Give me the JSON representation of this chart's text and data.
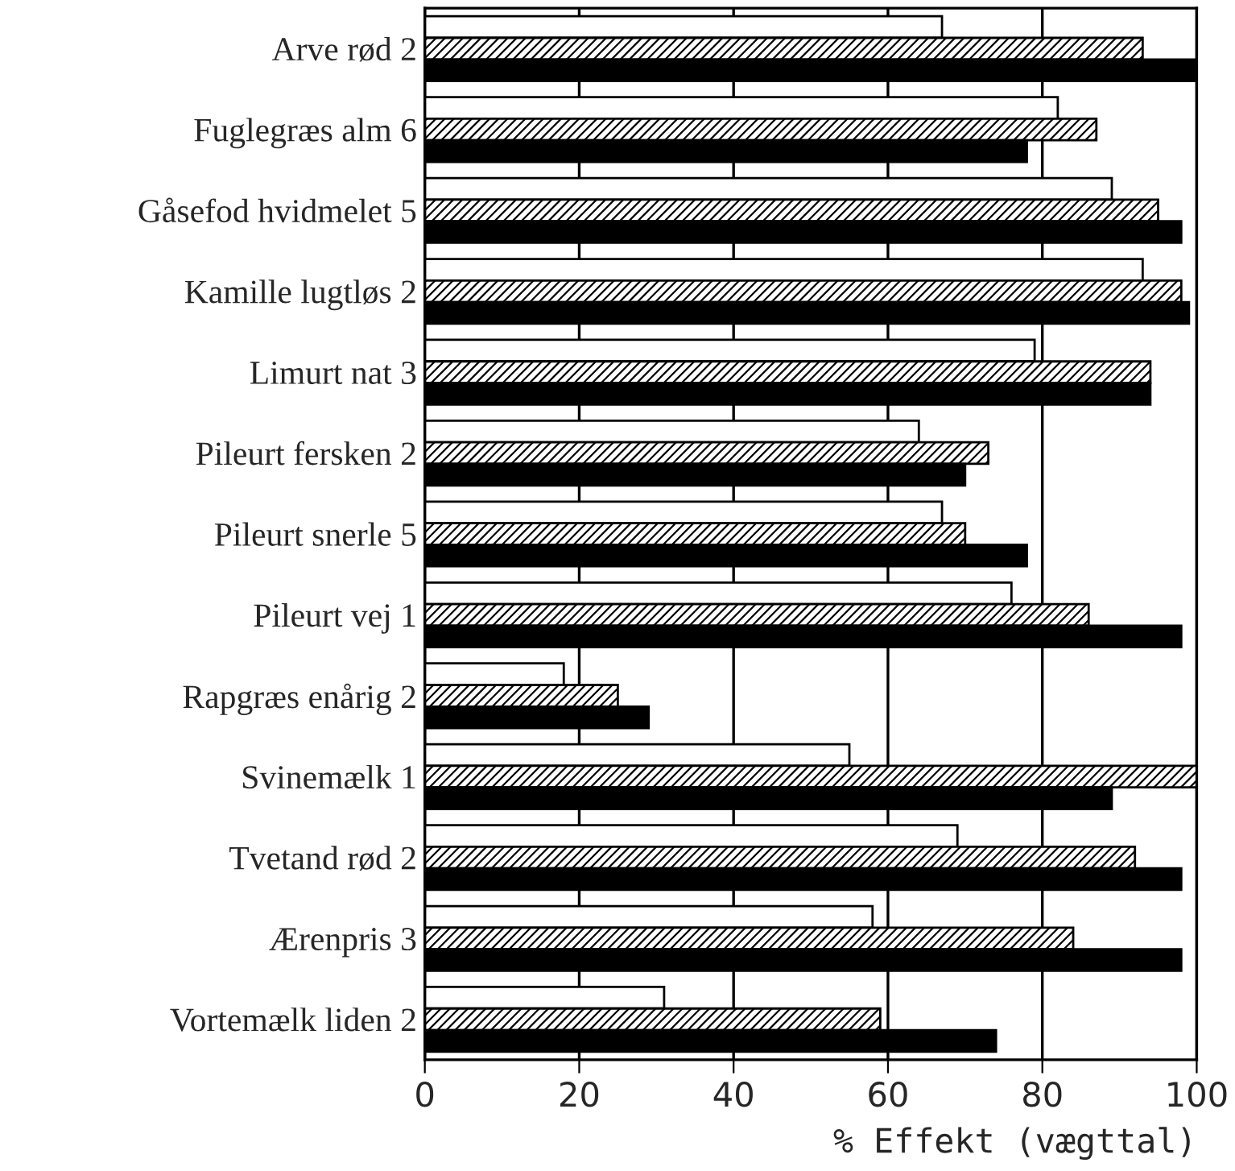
{
  "chart_data": {
    "type": "bar",
    "orientation": "horizontal",
    "xlabel": "% Effekt (vægttal)",
    "categories": [
      "Arve rød 2",
      "Fuglegræs alm 6",
      "Gåsefod hvidmelet 5",
      "Kamille lugtløs 2",
      "Limurt nat 3",
      "Pileurt fersken 2",
      "Pileurt snerle 5",
      "Pileurt vej 1",
      "Rapgræs enårig 2",
      "Svinemælk 1",
      "Tvetand rød 2",
      "Ærenpris 3",
      "Vortemælk liden 2"
    ],
    "series": [
      {
        "color": "#ffffff",
        "values": [
          67,
          82,
          89,
          93,
          79,
          64,
          67,
          76,
          18,
          55,
          69,
          58,
          31
        ]
      },
      {
        "color": "#000000",
        "values": [
          93,
          87,
          95,
          98,
          94,
          73,
          70,
          86,
          25,
          100,
          92,
          84,
          59
        ]
      },
      {
        "color": "#000000",
        "values": [
          100,
          78,
          98,
          99,
          94,
          70,
          78,
          98,
          29,
          89,
          98,
          98,
          74
        ]
      }
    ],
    "xlim": [
      0,
      100
    ],
    "xticks": [
      0,
      20,
      40,
      60,
      80,
      100
    ],
    "grid": "x"
  }
}
